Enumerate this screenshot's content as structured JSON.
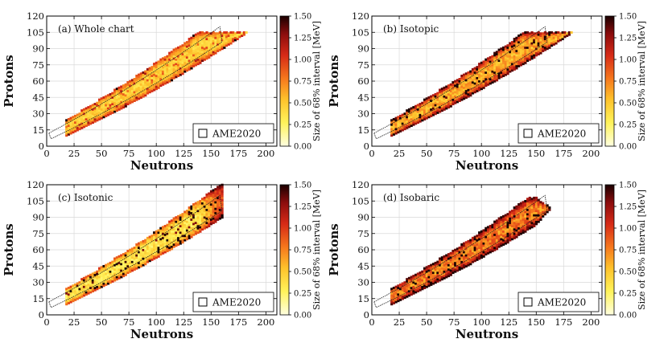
{
  "chart_data": [
    {
      "type": "heatmap",
      "title": "(a) Whole chart",
      "xlabel": "Neutrons",
      "ylabel": "Protons",
      "xlim": [
        0,
        210
      ],
      "ylim": [
        0,
        120
      ],
      "xticks": [
        "0",
        "25",
        "50",
        "75",
        "100",
        "125",
        "150",
        "175",
        "200"
      ],
      "yticks": [
        "0",
        "15",
        "30",
        "45",
        "60",
        "75",
        "90",
        "105",
        "120"
      ],
      "colorbar_label": "Size of 68% interval [MeV]",
      "colorbar_ticks": [
        "0.00",
        "0.25",
        "0.50",
        "0.75",
        "1.00",
        "1.25",
        "1.50"
      ],
      "clim": [
        0,
        1.5
      ],
      "legend": "AME2020",
      "n_max": 200,
      "base": 0.45,
      "edge": 0.55,
      "noise": 0.25,
      "spike": 0.15
    },
    {
      "type": "heatmap",
      "title": "(b) Isotopic",
      "xlabel": "Neutrons",
      "ylabel": "Protons",
      "xlim": [
        0,
        210
      ],
      "ylim": [
        0,
        120
      ],
      "xticks": [
        "0",
        "25",
        "50",
        "75",
        "100",
        "125",
        "150",
        "175",
        "200"
      ],
      "yticks": [
        "0",
        "15",
        "30",
        "45",
        "60",
        "75",
        "90",
        "105",
        "120"
      ],
      "colorbar_label": "Size of 68% interval [MeV]",
      "colorbar_ticks": [
        "0.00",
        "0.25",
        "0.50",
        "0.75",
        "1.00",
        "1.25",
        "1.50"
      ],
      "clim": [
        0,
        1.5
      ],
      "legend": "AME2020",
      "n_max": 200,
      "base": 0.6,
      "edge": 0.75,
      "noise": 0.35,
      "spike": 0.3
    },
    {
      "type": "heatmap",
      "title": "(c) Isotonic",
      "xlabel": "Neutrons",
      "ylabel": "Protons",
      "xlim": [
        0,
        210
      ],
      "ylim": [
        0,
        120
      ],
      "xticks": [
        "0",
        "25",
        "50",
        "75",
        "100",
        "125",
        "150",
        "175",
        "200"
      ],
      "yticks": [
        "0",
        "15",
        "30",
        "45",
        "60",
        "75",
        "90",
        "105",
        "120"
      ],
      "colorbar_label": "Size of 68% interval [MeV]",
      "colorbar_ticks": [
        "0.00",
        "0.25",
        "0.50",
        "0.75",
        "1.00",
        "1.25",
        "1.50"
      ],
      "clim": [
        0,
        1.5
      ],
      "legend": "AME2020",
      "n_max": 160,
      "base": 0.35,
      "edge": 0.55,
      "noise": 0.3,
      "spike": 0.35
    },
    {
      "type": "heatmap",
      "title": "(d) Isobaric",
      "xlabel": "Neutrons",
      "ylabel": "Protons",
      "xlim": [
        0,
        210
      ],
      "ylim": [
        0,
        120
      ],
      "xticks": [
        "0",
        "25",
        "50",
        "75",
        "100",
        "125",
        "150",
        "175",
        "200"
      ],
      "yticks": [
        "0",
        "15",
        "30",
        "45",
        "60",
        "75",
        "90",
        "105",
        "120"
      ],
      "colorbar_label": "Size of 68% interval [MeV]",
      "colorbar_ticks": [
        "0.00",
        "0.25",
        "0.50",
        "0.75",
        "1.00",
        "1.25",
        "1.50"
      ],
      "clim": [
        0,
        1.5
      ],
      "legend": "AME2020",
      "n_max": 180,
      "base": 0.75,
      "edge": 0.7,
      "noise": 0.4,
      "spike": 0.3
    }
  ]
}
